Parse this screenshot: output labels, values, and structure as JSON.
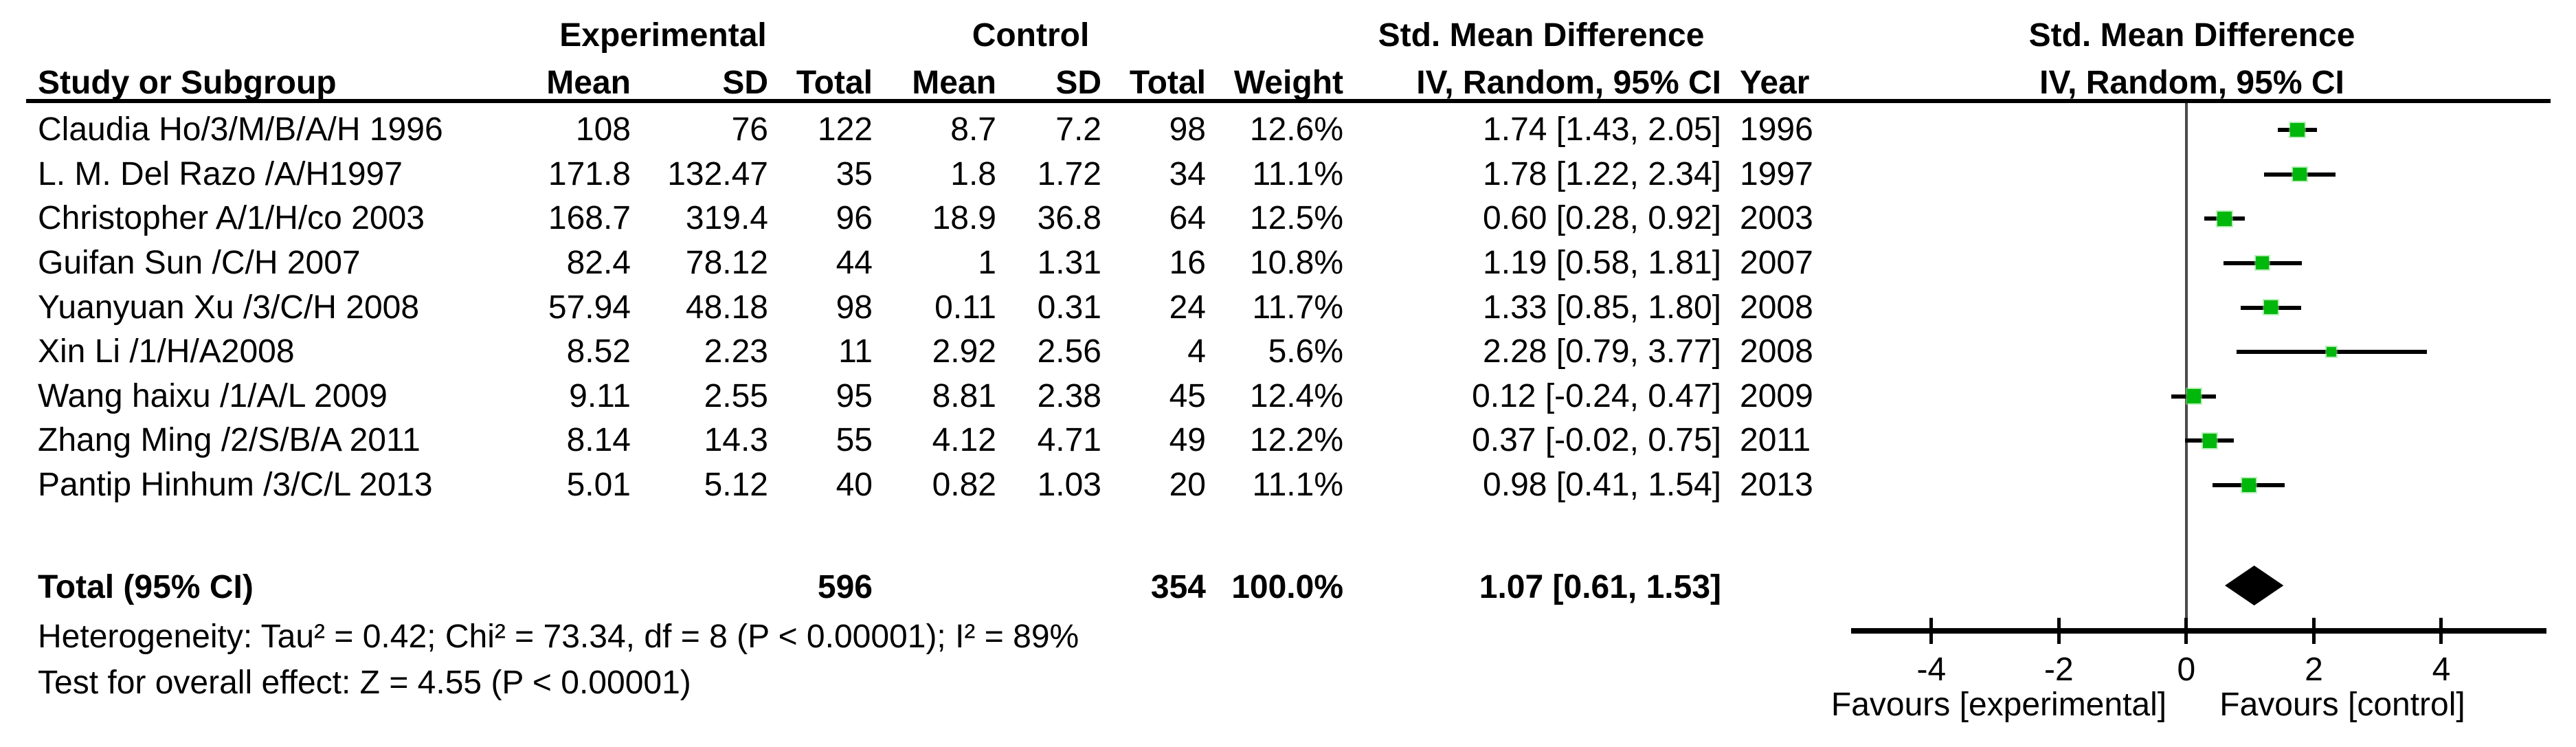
{
  "chart_data": {
    "type": "scatter",
    "subtype": "forest-plot-meta-analysis",
    "effect_label": "Std. Mean Difference",
    "method_label": "IV, Random, 95% CI",
    "columns": {
      "study": "Study or Subgroup",
      "group_experimental": "Experimental",
      "group_control": "Control",
      "mean": "Mean",
      "sd": "SD",
      "total": "Total",
      "weight": "Weight",
      "year": "Year"
    },
    "studies": [
      {
        "name": "Claudia Ho/3/M/B/A/H 1996",
        "exp_mean": "108",
        "exp_sd": "76",
        "exp_total": "122",
        "ctl_mean": "8.7",
        "ctl_sd": "7.2",
        "ctl_total": "98",
        "weight_pct": 12.6,
        "weight_label": "12.6%",
        "smd": 1.74,
        "ci_low": 1.43,
        "ci_high": 2.05,
        "ci_label": "1.74 [1.43, 2.05]",
        "year": "1996"
      },
      {
        "name": "L. M. Del Razo /A/H1997",
        "exp_mean": "171.8",
        "exp_sd": "132.47",
        "exp_total": "35",
        "ctl_mean": "1.8",
        "ctl_sd": "1.72",
        "ctl_total": "34",
        "weight_pct": 11.1,
        "weight_label": "11.1%",
        "smd": 1.78,
        "ci_low": 1.22,
        "ci_high": 2.34,
        "ci_label": "1.78 [1.22, 2.34]",
        "year": "1997"
      },
      {
        "name": "Christopher A/1/H/co 2003",
        "exp_mean": "168.7",
        "exp_sd": "319.4",
        "exp_total": "96",
        "ctl_mean": "18.9",
        "ctl_sd": "36.8",
        "ctl_total": "64",
        "weight_pct": 12.5,
        "weight_label": "12.5%",
        "smd": 0.6,
        "ci_low": 0.28,
        "ci_high": 0.92,
        "ci_label": "0.60 [0.28, 0.92]",
        "year": "2003"
      },
      {
        "name": "Guifan Sun /C/H 2007",
        "exp_mean": "82.4",
        "exp_sd": "78.12",
        "exp_total": "44",
        "ctl_mean": "1",
        "ctl_sd": "1.31",
        "ctl_total": "16",
        "weight_pct": 10.8,
        "weight_label": "10.8%",
        "smd": 1.19,
        "ci_low": 0.58,
        "ci_high": 1.81,
        "ci_label": "1.19 [0.58, 1.81]",
        "year": "2007"
      },
      {
        "name": "Yuanyuan Xu /3/C/H 2008",
        "exp_mean": "57.94",
        "exp_sd": "48.18",
        "exp_total": "98",
        "ctl_mean": "0.11",
        "ctl_sd": "0.31",
        "ctl_total": "24",
        "weight_pct": 11.7,
        "weight_label": "11.7%",
        "smd": 1.33,
        "ci_low": 0.85,
        "ci_high": 1.8,
        "ci_label": "1.33 [0.85, 1.80]",
        "year": "2008"
      },
      {
        "name": "Xin Li /1/H/A2008",
        "exp_mean": "8.52",
        "exp_sd": "2.23",
        "exp_total": "11",
        "ctl_mean": "2.92",
        "ctl_sd": "2.56",
        "ctl_total": "4",
        "weight_pct": 5.6,
        "weight_label": "5.6%",
        "smd": 2.28,
        "ci_low": 0.79,
        "ci_high": 3.77,
        "ci_label": "2.28 [0.79, 3.77]",
        "year": "2008"
      },
      {
        "name": "Wang haixu /1/A/L 2009",
        "exp_mean": "9.11",
        "exp_sd": "2.55",
        "exp_total": "95",
        "ctl_mean": "8.81",
        "ctl_sd": "2.38",
        "ctl_total": "45",
        "weight_pct": 12.4,
        "weight_label": "12.4%",
        "smd": 0.12,
        "ci_low": -0.24,
        "ci_high": 0.47,
        "ci_label": "0.12 [-0.24, 0.47]",
        "year": "2009"
      },
      {
        "name": "Zhang Ming /2/S/B/A 2011",
        "exp_mean": "8.14",
        "exp_sd": "14.3",
        "exp_total": "55",
        "ctl_mean": "4.12",
        "ctl_sd": "4.71",
        "ctl_total": "49",
        "weight_pct": 12.2,
        "weight_label": "12.2%",
        "smd": 0.37,
        "ci_low": -0.02,
        "ci_high": 0.75,
        "ci_label": "0.37 [-0.02, 0.75]",
        "year": "2011"
      },
      {
        "name": "Pantip Hinhum /3/C/L 2013",
        "exp_mean": "5.01",
        "exp_sd": "5.12",
        "exp_total": "40",
        "ctl_mean": "0.82",
        "ctl_sd": "1.03",
        "ctl_total": "20",
        "weight_pct": 11.1,
        "weight_label": "11.1%",
        "smd": 0.98,
        "ci_low": 0.41,
        "ci_high": 1.54,
        "ci_label": "0.98 [0.41, 1.54]",
        "year": "2013"
      }
    ],
    "total": {
      "label": "Total (95% CI)",
      "exp_total": "596",
      "ctl_total": "354",
      "weight_label": "100.0%",
      "smd": 1.07,
      "ci_low": 0.61,
      "ci_high": 1.53,
      "ci_label": "1.07 [0.61, 1.53]"
    },
    "footnotes": {
      "heterogeneity": "Heterogeneity: Tau² = 0.42; Chi² = 73.34, df = 8 (P < 0.00001); I² = 89%",
      "overall_effect": "Test for overall effect: Z = 4.55 (P < 0.00001)"
    },
    "xaxis": {
      "min": -5.26,
      "max": 5.65,
      "ticks": [
        -4,
        -2,
        0,
        2,
        4
      ],
      "favours_left": "Favours [experimental]",
      "favours_right": "Favours [control]"
    },
    "colors": {
      "marker": "#00b80c",
      "ci_line": "#000000",
      "diamond": "#000000",
      "axis": "#000000",
      "zero_line": "#4a4a4a",
      "text": "#000000",
      "background": "#ffffff"
    }
  }
}
